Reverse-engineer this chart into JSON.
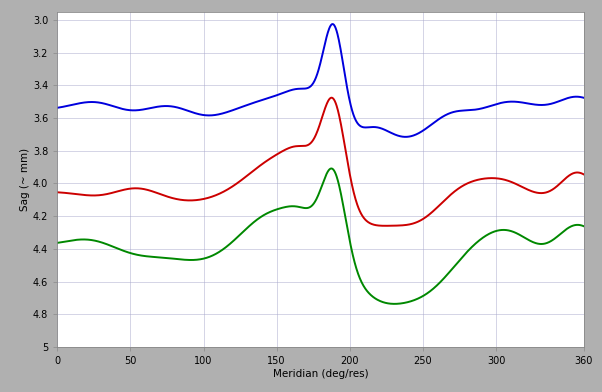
{
  "xlabel": "Meridian (deg/res)",
  "ylabel": "Sag (~ mm)",
  "xlim": [
    0,
    360
  ],
  "bg_color": "#b0b0b0",
  "plot_bg": "#ffffff",
  "grid_color": "#aaaacc",
  "blue_color": "#0000dd",
  "red_color": "#cc0000",
  "green_color": "#008800",
  "peak_x": 189,
  "ytick_labels": [
    "5",
    "4.8",
    "4.6",
    "4.4",
    "4.2",
    "4.0",
    "3.8",
    "3.6",
    "3.4",
    "3.2",
    "3.0"
  ],
  "ytick_vals": [
    5.0,
    4.8,
    4.6,
    4.4,
    4.2,
    4.0,
    3.8,
    3.6,
    3.4,
    3.2,
    3.0
  ],
  "xtick_vals": [
    0,
    50,
    100,
    150,
    200,
    250,
    300,
    360
  ]
}
